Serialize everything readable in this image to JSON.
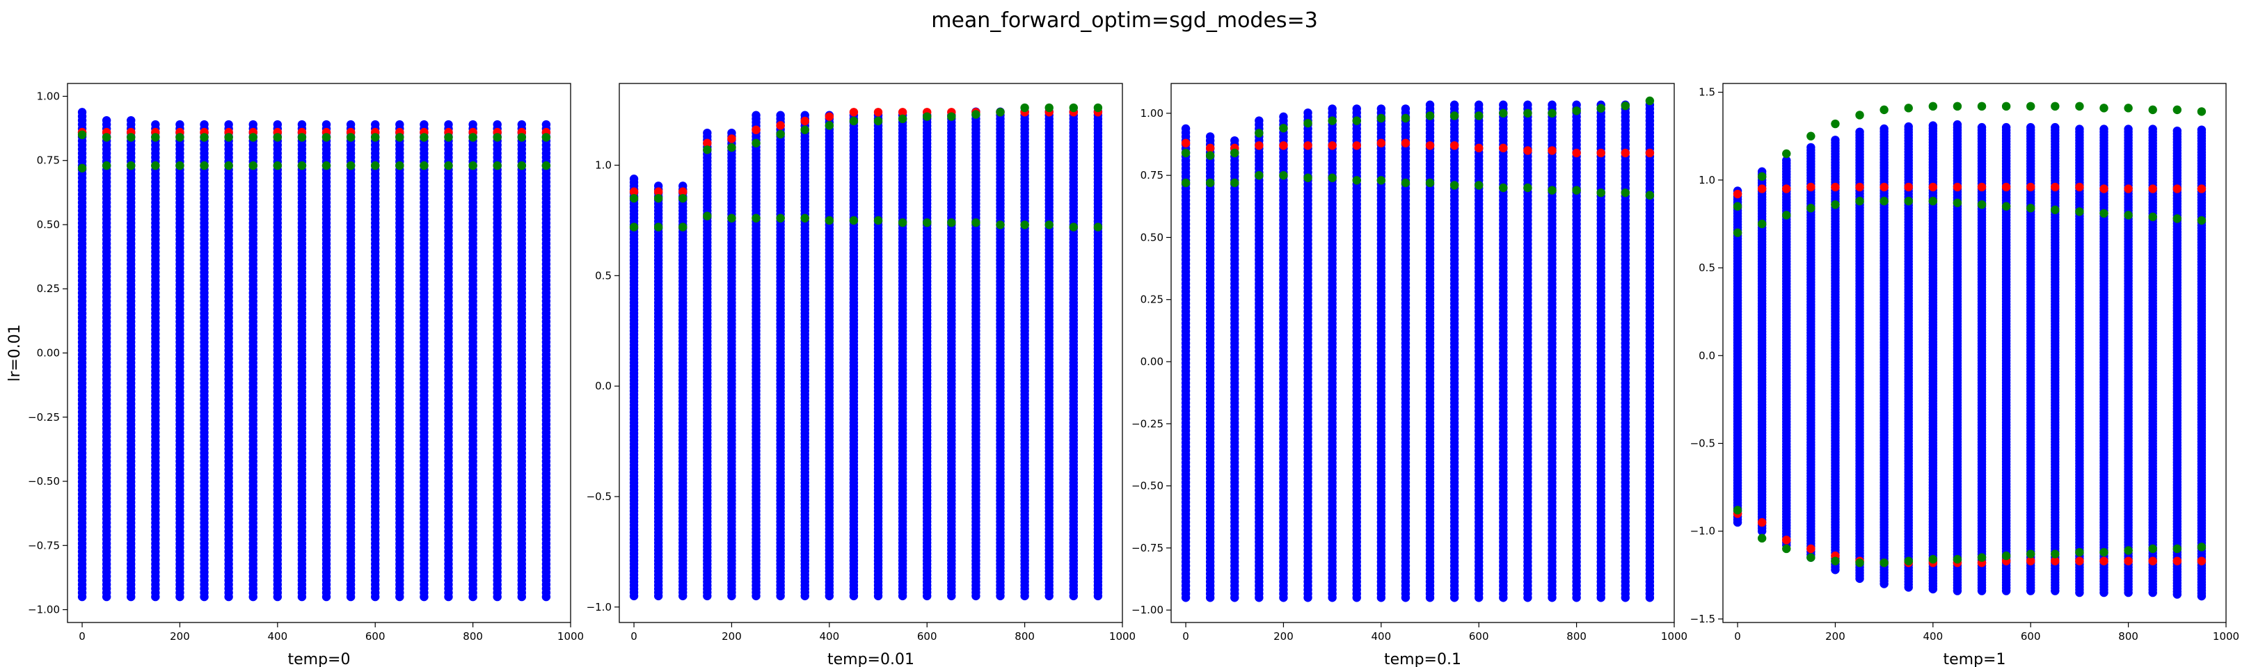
{
  "figure": {
    "title": "mean_forward_optim=sgd_modes=3"
  },
  "colors": {
    "blue": "#0000ff",
    "red": "#ff0000",
    "green": "#008000"
  },
  "chart_data": [
    {
      "type": "scatter",
      "title": "",
      "xlabel": "temp=0",
      "ylabel": "lr=0.01",
      "xlim": [
        -30,
        1000
      ],
      "ylim": [
        -1.05,
        1.05
      ],
      "xticks": [
        0,
        200,
        400,
        600,
        800,
        1000
      ],
      "yticks": [
        -1.0,
        -0.75,
        -0.5,
        -0.25,
        0.0,
        0.25,
        0.5,
        0.75,
        1.0
      ],
      "ytick_labels": [
        "−1.00",
        "−0.75",
        "−0.50",
        "−0.25",
        "0.00",
        "0.25",
        "0.50",
        "0.75",
        "1.00"
      ],
      "grid": false,
      "x": [
        0,
        50,
        100,
        150,
        200,
        250,
        300,
        350,
        400,
        450,
        500,
        550,
        600,
        650,
        700,
        750,
        800,
        850,
        900,
        950
      ],
      "series": [
        {
          "color": "blue",
          "y_min": [
            -0.95,
            -0.95,
            -0.95,
            -0.95,
            -0.95,
            -0.95,
            -0.95,
            -0.95,
            -0.95,
            -0.95,
            -0.95,
            -0.95,
            -0.95,
            -0.95,
            -0.95,
            -0.95,
            -0.95,
            -0.95,
            -0.95,
            -0.95
          ],
          "y_max": [
            0.95,
            0.92,
            0.91,
            0.9,
            0.9,
            0.9,
            0.9,
            0.9,
            0.9,
            0.9,
            0.9,
            0.9,
            0.9,
            0.9,
            0.9,
            0.9,
            0.9,
            0.9,
            0.9,
            0.9
          ]
        },
        {
          "color": "red",
          "y": [
            0.86,
            0.86,
            0.86,
            0.86,
            0.86,
            0.86,
            0.86,
            0.86,
            0.86,
            0.86,
            0.86,
            0.86,
            0.86,
            0.86,
            0.86,
            0.86,
            0.86,
            0.86,
            0.86,
            0.86
          ]
        },
        {
          "color": "green",
          "y": [
            0.72,
            0.73,
            0.73,
            0.73,
            0.73,
            0.73,
            0.73,
            0.73,
            0.73,
            0.73,
            0.73,
            0.73,
            0.73,
            0.73,
            0.73,
            0.73,
            0.73,
            0.73,
            0.73,
            0.73
          ]
        },
        {
          "color": "green",
          "y": [
            0.85,
            0.84,
            0.84,
            0.84,
            0.84,
            0.84,
            0.84,
            0.84,
            0.84,
            0.84,
            0.84,
            0.84,
            0.84,
            0.84,
            0.84,
            0.84,
            0.84,
            0.84,
            0.84,
            0.84
          ]
        }
      ]
    },
    {
      "type": "scatter",
      "title": "",
      "xlabel": "temp=0.01",
      "ylabel": "",
      "xlim": [
        -30,
        1000
      ],
      "ylim": [
        -1.07,
        1.37
      ],
      "xticks": [
        0,
        200,
        400,
        600,
        800,
        1000
      ],
      "yticks": [
        -1.0,
        -0.5,
        0.0,
        0.5,
        1.0
      ],
      "ytick_labels": [
        "−1.0",
        "−0.5",
        "0.0",
        "0.5",
        "1.0"
      ],
      "grid": false,
      "x": [
        0,
        50,
        100,
        150,
        200,
        250,
        300,
        350,
        400,
        450,
        500,
        550,
        600,
        650,
        700,
        750,
        800,
        850,
        900,
        950
      ],
      "series": [
        {
          "color": "blue",
          "y_min": [
            -0.95,
            -0.95,
            -0.95,
            -0.95,
            -0.95,
            -0.95,
            -0.95,
            -0.95,
            -0.95,
            -0.95,
            -0.95,
            -0.95,
            -0.95,
            -0.95,
            -0.95,
            -0.95,
            -0.95,
            -0.95,
            -0.95,
            -0.95
          ],
          "y_max": [
            0.95,
            0.92,
            0.91,
            1.16,
            1.16,
            1.23,
            1.23,
            1.23,
            1.24,
            1.24,
            1.24,
            1.24,
            1.24,
            1.24,
            1.25,
            1.25,
            1.25,
            1.25,
            1.25,
            1.25
          ]
        },
        {
          "color": "red",
          "y": [
            0.88,
            0.88,
            0.88,
            1.1,
            1.12,
            1.16,
            1.18,
            1.2,
            1.22,
            1.24,
            1.24,
            1.24,
            1.24,
            1.24,
            1.24,
            1.24,
            1.24,
            1.24,
            1.24,
            1.24
          ]
        },
        {
          "color": "green",
          "y": [
            0.85,
            0.85,
            0.85,
            1.07,
            1.08,
            1.1,
            1.14,
            1.16,
            1.18,
            1.2,
            1.2,
            1.21,
            1.22,
            1.22,
            1.23,
            1.24,
            1.26,
            1.26,
            1.26,
            1.26
          ]
        },
        {
          "color": "green",
          "y": [
            0.72,
            0.72,
            0.72,
            0.77,
            0.76,
            0.76,
            0.76,
            0.76,
            0.75,
            0.75,
            0.75,
            0.74,
            0.74,
            0.74,
            0.74,
            0.73,
            0.73,
            0.73,
            0.72,
            0.72
          ]
        }
      ]
    },
    {
      "type": "scatter",
      "title": "",
      "xlabel": "temp=0.1",
      "ylabel": "",
      "xlim": [
        -30,
        1000
      ],
      "ylim": [
        -1.05,
        1.12
      ],
      "xticks": [
        0,
        200,
        400,
        600,
        800,
        1000
      ],
      "yticks": [
        -1.0,
        -0.75,
        -0.5,
        -0.25,
        0.0,
        0.25,
        0.5,
        0.75,
        1.0
      ],
      "ytick_labels": [
        "−1.00",
        "−0.75",
        "−0.50",
        "−0.25",
        "0.00",
        "0.25",
        "0.50",
        "0.75",
        "1.00"
      ],
      "grid": false,
      "x": [
        0,
        50,
        100,
        150,
        200,
        250,
        300,
        350,
        400,
        450,
        500,
        550,
        600,
        650,
        700,
        750,
        800,
        850,
        900,
        950
      ],
      "series": [
        {
          "color": "blue",
          "y_min": [
            -0.95,
            -0.95,
            -0.95,
            -0.95,
            -0.95,
            -0.95,
            -0.95,
            -0.95,
            -0.95,
            -0.95,
            -0.95,
            -0.95,
            -0.95,
            -0.95,
            -0.95,
            -0.95,
            -0.95,
            -0.95,
            -0.95,
            -0.95
          ],
          "y_max": [
            0.95,
            0.92,
            0.9,
            0.98,
            1.0,
            1.01,
            1.02,
            1.02,
            1.03,
            1.03,
            1.04,
            1.04,
            1.04,
            1.04,
            1.04,
            1.04,
            1.04,
            1.04,
            1.04,
            1.04
          ]
        },
        {
          "color": "red",
          "y": [
            0.88,
            0.86,
            0.86,
            0.87,
            0.87,
            0.87,
            0.87,
            0.87,
            0.88,
            0.88,
            0.87,
            0.87,
            0.86,
            0.86,
            0.85,
            0.85,
            0.84,
            0.84,
            0.84,
            0.84
          ]
        },
        {
          "color": "green",
          "y": [
            0.84,
            0.83,
            0.84,
            0.92,
            0.94,
            0.96,
            0.97,
            0.97,
            0.98,
            0.98,
            0.99,
            0.99,
            0.99,
            1.0,
            1.0,
            1.0,
            1.01,
            1.02,
            1.03,
            1.05
          ]
        },
        {
          "color": "green",
          "y": [
            0.72,
            0.72,
            0.72,
            0.75,
            0.75,
            0.74,
            0.74,
            0.73,
            0.73,
            0.72,
            0.72,
            0.71,
            0.71,
            0.7,
            0.7,
            0.69,
            0.69,
            0.68,
            0.68,
            0.67
          ]
        }
      ]
    },
    {
      "type": "scatter",
      "title": "",
      "xlabel": "temp=1",
      "ylabel": "",
      "xlim": [
        -30,
        1000
      ],
      "ylim": [
        -1.52,
        1.55
      ],
      "xticks": [
        0,
        200,
        400,
        600,
        800,
        1000
      ],
      "yticks": [
        -1.5,
        -1.0,
        -0.5,
        0.0,
        0.5,
        1.0,
        1.5
      ],
      "ytick_labels": [
        "−1.5",
        "−1.0",
        "−0.5",
        "0.0",
        "0.5",
        "1.0",
        "1.5"
      ],
      "grid": false,
      "x": [
        0,
        50,
        100,
        150,
        200,
        250,
        300,
        350,
        400,
        450,
        500,
        550,
        600,
        650,
        700,
        750,
        800,
        850,
        900,
        950
      ],
      "series": [
        {
          "color": "blue",
          "y_min": [
            -0.95,
            -1.0,
            -1.08,
            -1.15,
            -1.22,
            -1.27,
            -1.3,
            -1.32,
            -1.33,
            -1.34,
            -1.34,
            -1.34,
            -1.34,
            -1.34,
            -1.35,
            -1.35,
            -1.35,
            -1.35,
            -1.36,
            -1.37
          ],
          "y_max": [
            0.95,
            1.05,
            1.12,
            1.19,
            1.24,
            1.28,
            1.3,
            1.31,
            1.31,
            1.32,
            1.31,
            1.31,
            1.31,
            1.31,
            1.3,
            1.3,
            1.3,
            1.29,
            1.29,
            1.29
          ]
        },
        {
          "color": "red",
          "y": [
            -0.9,
            -0.95,
            -1.05,
            -1.1,
            -1.14,
            -1.17,
            -1.18,
            -1.18,
            -1.18,
            -1.18,
            -1.18,
            -1.17,
            -1.17,
            -1.17,
            -1.17,
            -1.17,
            -1.17,
            -1.17,
            -1.17,
            -1.17
          ]
        },
        {
          "color": "red",
          "y": [
            0.92,
            0.95,
            0.95,
            0.96,
            0.96,
            0.96,
            0.96,
            0.96,
            0.96,
            0.96,
            0.96,
            0.96,
            0.96,
            0.96,
            0.96,
            0.95,
            0.95,
            0.95,
            0.95,
            0.95
          ]
        },
        {
          "color": "green",
          "y": [
            0.85,
            1.02,
            1.15,
            1.25,
            1.32,
            1.37,
            1.4,
            1.41,
            1.42,
            1.42,
            1.42,
            1.42,
            1.42,
            1.42,
            1.42,
            1.41,
            1.41,
            1.4,
            1.4,
            1.39
          ]
        },
        {
          "color": "green",
          "y": [
            -0.88,
            -1.04,
            -1.1,
            -1.15,
            -1.17,
            -1.18,
            -1.18,
            -1.17,
            -1.16,
            -1.16,
            -1.15,
            -1.14,
            -1.13,
            -1.13,
            -1.12,
            -1.12,
            -1.11,
            -1.1,
            -1.1,
            -1.09
          ]
        },
        {
          "color": "green",
          "y": [
            0.7,
            0.75,
            0.8,
            0.84,
            0.86,
            0.88,
            0.88,
            0.88,
            0.88,
            0.87,
            0.86,
            0.85,
            0.84,
            0.83,
            0.82,
            0.81,
            0.8,
            0.79,
            0.78,
            0.77
          ]
        }
      ]
    }
  ]
}
